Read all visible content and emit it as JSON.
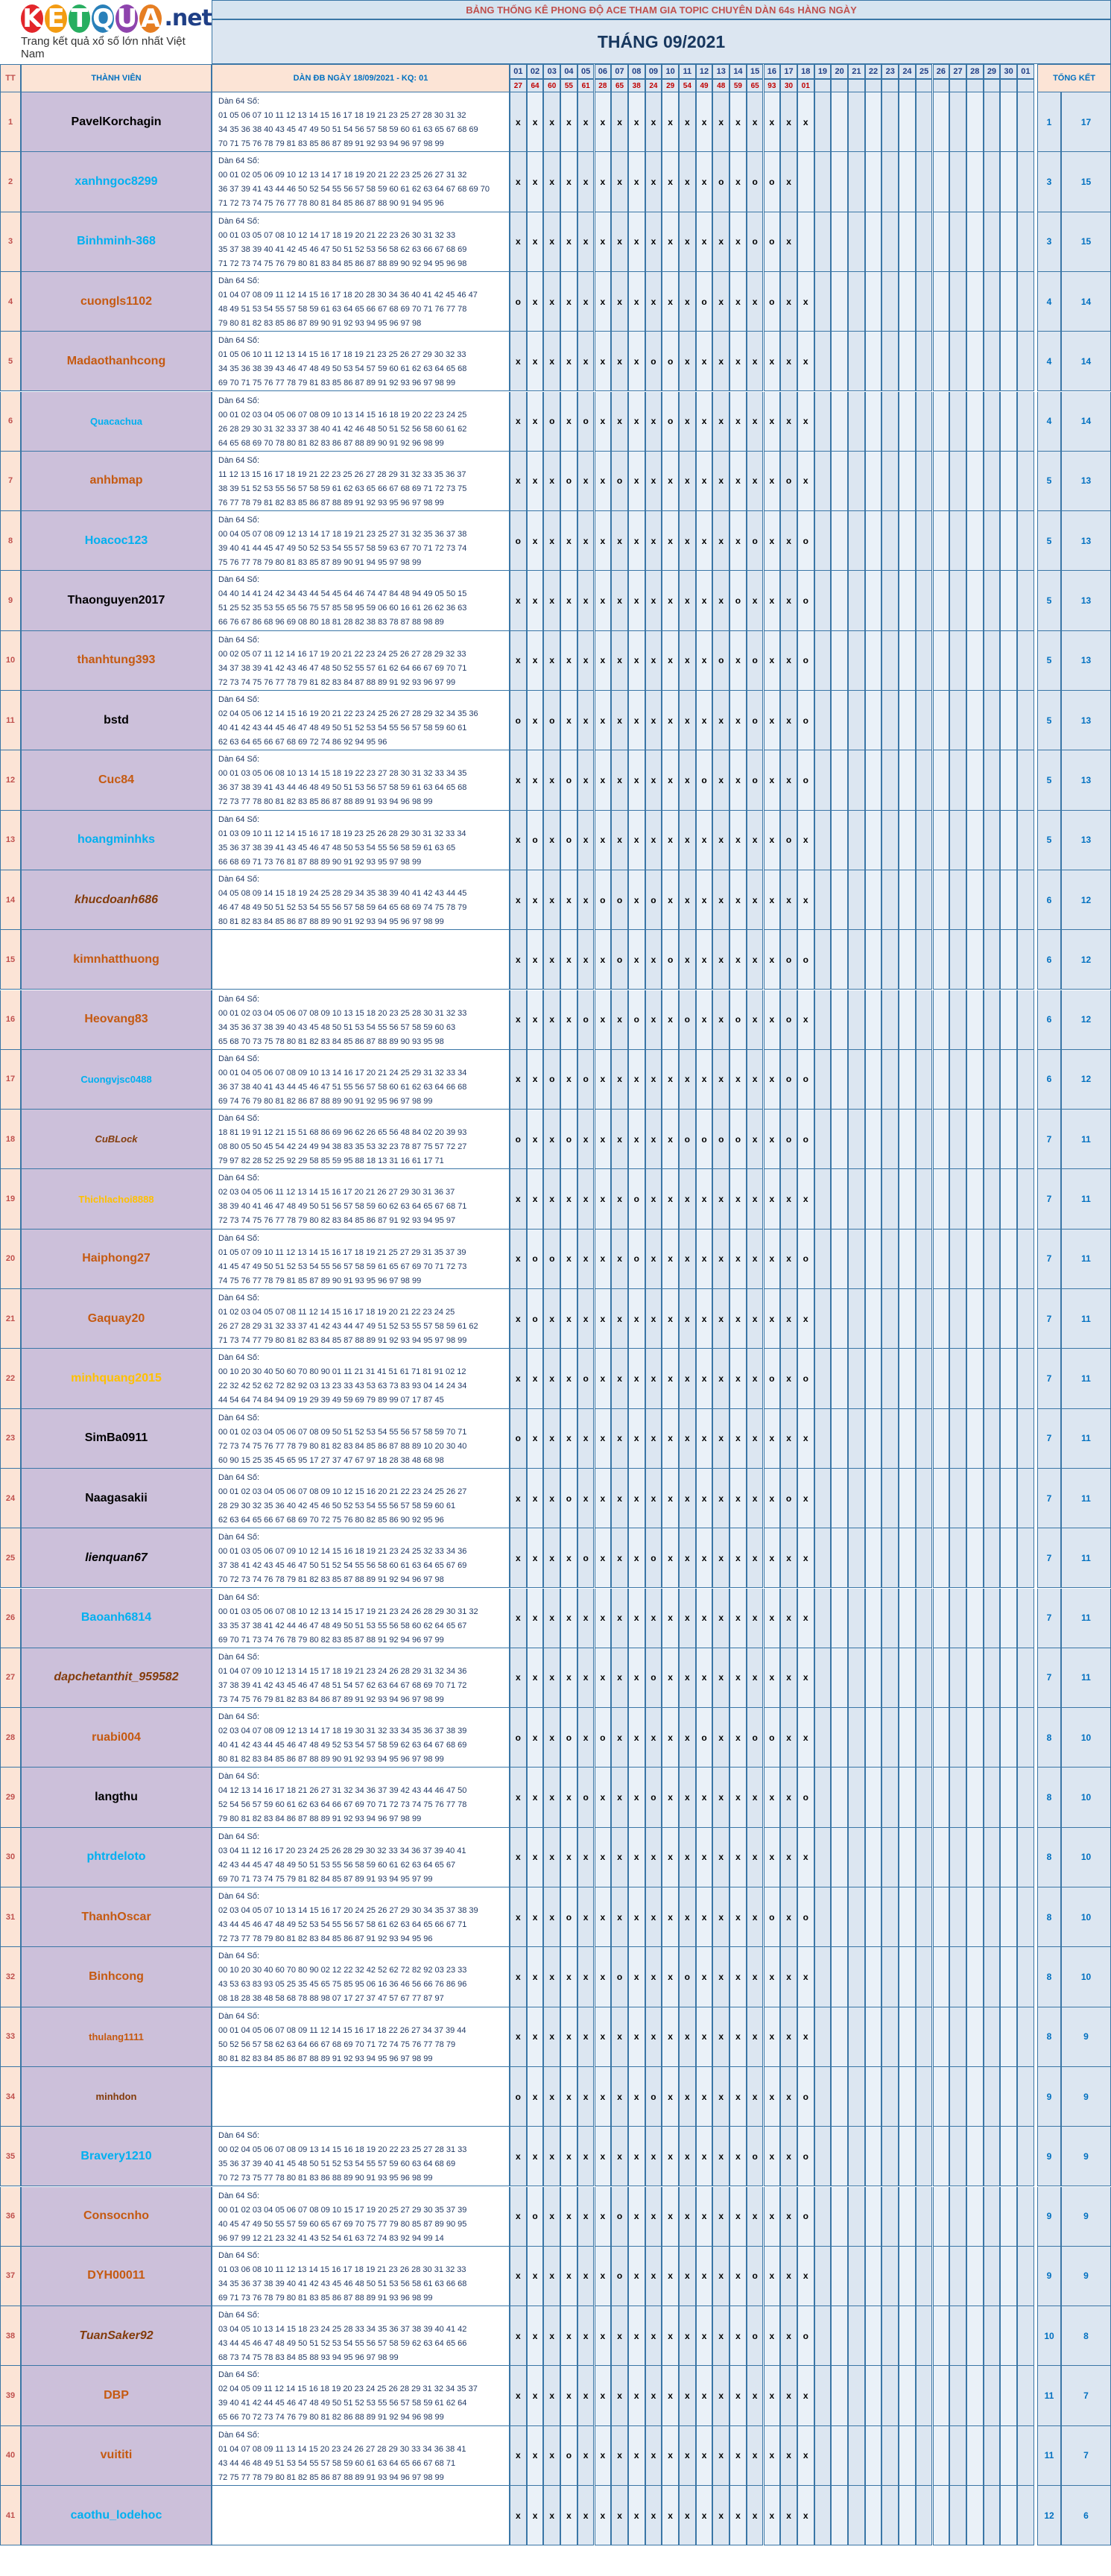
{
  "logo": {
    "letters": [
      "K",
      "E",
      "T",
      "Q",
      "U",
      "A"
    ],
    "letter_colors": [
      "#e3262b",
      "#f39c12",
      "#27ae60",
      "#2980b9",
      "#8e44ad",
      "#e67e22"
    ],
    "suffix": ".net",
    "tagline": "Trang kết quả xổ số lớn nhất Việt Nam"
  },
  "header": {
    "title": "BẢNG THỐNG KÊ PHONG ĐỘ ACE THAM GIA TOPIC CHUYÊN DÀN 64s HÀNG NGÀY",
    "month": "THÁNG 09/2021",
    "col_tt": "TT",
    "col_member": "THÀNH VIÊN",
    "col_dan": "DÀN ĐB NGÀY 18/09/2021 - KQ: 01",
    "col_total": "TỔNG KẾT",
    "days": [
      "01",
      "02",
      "03",
      "04",
      "05",
      "06",
      "07",
      "08",
      "09",
      "10",
      "11",
      "12",
      "13",
      "14",
      "15",
      "16",
      "17",
      "18",
      "19",
      "20",
      "21",
      "22",
      "23",
      "24",
      "25",
      "26",
      "27",
      "28",
      "29",
      "30",
      "01"
    ],
    "results": [
      "27",
      "64",
      "60",
      "55",
      "61",
      "28",
      "65",
      "38",
      "24",
      "29",
      "54",
      "49",
      "48",
      "59",
      "65",
      "93",
      "30",
      "01",
      "",
      "",
      "",
      "",
      "",
      "",
      "",
      "",
      "",
      "",
      "",
      "",
      ""
    ]
  },
  "members": [
    {
      "tt": "1",
      "name": "PavelKorchagin",
      "color": "#000000",
      "italic": false,
      "dan": [
        "Dàn 64 Số:",
        "01 05 06 07 10 11 12 13 14 15 16 17 18 19 21 23 25 27 28 30 31 32",
        "34 35 36 38 40 43 45 47 49 50 51 54 56 57 58 59 60 61 63 65 67 68 69",
        "70 71 75 76 78 79 81 83 85 86 87 89 91 92 93 94 96 97 98 99"
      ],
      "marks": "xxxxxxxxxxxxxxxxxx",
      "t1": "1",
      "t2": "17"
    },
    {
      "tt": "2",
      "name": "xanhngoc8299",
      "color": "#00b0f0",
      "italic": false,
      "dan": [
        "Dàn 64 Số:",
        "00 01 02 05 06 09 10 12 13 14 17 18 19 20 21 22 23 25 26 27 31 32",
        "36 37 39 41 43 44 46 50 52 54 55 56 57 58 59 60 61 62 63 64 67 68 69 70",
        "71 72 73 74 75 76 77 78 80 81 84 85 86 87 88 90 91 94 95 96"
      ],
      "marks": "xxxxxxxxxxxxoxoox",
      "t1": "3",
      "t2": "15"
    },
    {
      "tt": "3",
      "name": "Binhminh-368",
      "color": "#00b0f0",
      "italic": false,
      "dan": [
        "Dàn 64 Số:",
        "00 01 03 05 07 08 10 12 14 17 18 19 20 21 22 23 26 30 31 32 33",
        "35 37 38 39 40 41 42 45 46 47 50 51 52 53 56 58 62 63 66 67 68 69",
        "71 72 73 74 75 76 79 80 81 83 84 85 86 87 88 89 90 92 94 95 96 98"
      ],
      "marks": "xxxxxxxxxxxxxxoox",
      "t1": "3",
      "t2": "15"
    },
    {
      "tt": "4",
      "name": "cuongls1102",
      "color": "#c55a11",
      "italic": false,
      "dan": [
        "Dàn 64 Số:",
        "01 04 07 08 09 11 12 14 15 16 17 18 20 28 30 34 36 40 41 42 45 46 47",
        "48 49 51 53 54 55 57 58 59 61 63 64 65 66 67 68 69 70 71 76 77 78",
        "79 80 81 82 83 85 86 87 89 90 91 92 93 94 95 96 97 98"
      ],
      "marks": "oxxxxxxxxxxoxxxoxx",
      "t1": "4",
      "t2": "14"
    },
    {
      "tt": "5",
      "name": "Madaothanhcong",
      "color": "#c55a11",
      "italic": false,
      "dan": [
        "Dàn 64 Số:",
        "01 05 06 10 11 12 13 14 15 16 17 18 19 21 23 25 26 27 29 30 32 33",
        "34 35 36 38 39 43 46 47 48 49 50 53 54 57 59 60 61 62 63 64 65 68",
        "69 70 71 75 76 77 78 79 81 83 85 86 87 89 91 92 93 96 97 98 99"
      ],
      "marks": "xxxxxxxxooxxxxxxxx",
      "t1": "4",
      "t2": "14"
    },
    {
      "tt": "6",
      "name": "Quacachua",
      "color": "#00b0f0",
      "italic": false,
      "small": true,
      "dan": [
        "Dàn 64 Số:",
        "00 01 02 03 04 05 06 07 08 09 10 13 14 15 16 18 19 20 22 23 24 25",
        "26 28 29 30 31 32 33 37 38 40 41 42 46 48 50 51 52 56 58 60 61 62",
        "64 65 68 69 70 78 80 81 82 83 86 87 88 89 90 91 92 96 98 99"
      ],
      "marks": "xxoxoxxxxoxxxxxxxx",
      "t1": "4",
      "t2": "14"
    },
    {
      "tt": "7",
      "name": "anhbmap",
      "color": "#c55a11",
      "italic": false,
      "dan": [
        "Dàn 64 Số:",
        "11 12 13 15 16 17 18 19 21 22 23 25 26 27 28 29 31 32 33 35 36 37",
        "38 39 51 52 53 55 56 57 58 59 61 62 63 65 66 67 68 69 71 72 73 75",
        "76 77 78 79 81 82 83 85 86 87 88 89 91 92 93 95 96 97 98 99"
      ],
      "marks": "xxxoxxoxxxxxxxxxox",
      "t1": "5",
      "t2": "13"
    },
    {
      "tt": "8",
      "name": "Hoacoc123",
      "color": "#00b0f0",
      "italic": false,
      "dan": [
        "Dàn 64 Số:",
        "00 04 05 07 08 09 12 13 14 17 18 19 21 23 25 27 31 32 35 36 37 38",
        "39 40 41 44 45 47 49 50 52 53 54 55 57 58 59 63 67 70 71 72 73 74",
        "75 76 77 78 79 80 81 83 85 87 89 90 91 94 95 97 98 99"
      ],
      "marks": "oxxxxxxxxxxxxxoxxo",
      "t1": "5",
      "t2": "13"
    },
    {
      "tt": "9",
      "name": "Thaonguyen2017",
      "color": "#000000",
      "italic": false,
      "dan": [
        "Dàn 64 Số:",
        "04 40 14 41 24 42 34 43 44 54 45 64 46 74 47 84 48 94 49 05 50 15",
        "51 25 52 35 53 55 65 56 75 57 85 58 95 59 06 60 16 61 26 62 36 63",
        "66 76 67 86 68 96 69 08 80 18 81 28 82 38 83 78 87 88 98 89"
      ],
      "marks": "xxxxxxxxxxxxxoxxxo",
      "t1": "5",
      "t2": "13"
    },
    {
      "tt": "10",
      "name": "thanhtung393",
      "color": "#c55a11",
      "italic": false,
      "dan": [
        "Dàn 64 Số:",
        "00 02 05 07 11 12 14 16 17 19 20 21 22 23 24 25 26 27 28 29 32 33",
        "34 37 38 39 41 42 43 46 47 48 50 52 55 57 61 62 64 66 67 69 70 71",
        "72 73 74 75 76 77 78 79 81 82 83 84 87 88 89 91 92 93 96 97 99"
      ],
      "marks": "xxxxxxxxxxxxoxoxxo",
      "t1": "5",
      "t2": "13"
    },
    {
      "tt": "11",
      "name": "bstd",
      "color": "#000000",
      "italic": false,
      "dan": [
        "Dàn 64 Số:",
        "02 04 05 06 12 14 15 16 19 20 21 22 23 24 25 26 27 28 29 32 34 35 36",
        "40 41 42 43 44 45 46 47 48 49 50 51 52 53 54 55 56 57 58 59 60 61",
        "62 63 64 65 66 67 68 69 72 74 86 92 94 95 96"
      ],
      "marks": "oxoxxxxxxxxxxxoxxo",
      "t1": "5",
      "t2": "13"
    },
    {
      "tt": "12",
      "name": "Cuc84",
      "color": "#c55a11",
      "italic": false,
      "dan": [
        "Dàn 64 Số:",
        "00 01 03 05 06 08 10 13 14 15 18 19 22 23 27 28 30 31 32 33 34 35",
        "36 37 38 39 41 43 44 46 48 49 50 51 53 56 57 58 59 61 63 64 65 68",
        "72 73 77 78 80 81 82 83 85 86 87 88 89 91 93 94 96 98 99"
      ],
      "marks": "xxxoxxxxxxxoxxoxxo",
      "t1": "5",
      "t2": "13"
    },
    {
      "tt": "13",
      "name": "hoangminhks",
      "color": "#00b0f0",
      "italic": false,
      "dan": [
        "Dàn 64 Số:",
        "01 03 09 10 11 12 14 15 16 17 18 19 23 25 26 28 29 30 31 32 33 34",
        "35 36 37 38 39 41 43 45 46 47 48 50 53 54 55 56 58 59 61 63 65",
        "66 68 69 71 73 76 81 87 88 89 90 91 92 93 95 97 98 99"
      ],
      "marks": "xoxoxxxxxxxxxxxxox",
      "t1": "5",
      "t2": "13"
    },
    {
      "tt": "14",
      "name": "khucdoanh686",
      "color": "#833c0b",
      "italic": true,
      "dan": [
        "Dàn 64 Số:",
        "04 05 08 09 14 15 18 19 24 25 28 29 34 35 38 39 40 41 42 43 44 45",
        "46 47 48 49 50 51 52 53 54 55 56 57 58 59 64 65 68 69 74 75 78 79",
        "80 81 82 83 84 85 86 87 88 89 90 91 92 93 94 95 96 97 98 99"
      ],
      "marks": "xxxxxooxoxxxxxxxxx",
      "t1": "6",
      "t2": "12"
    },
    {
      "tt": "15",
      "name": "kimnhatthuong",
      "color": "#c55a11",
      "italic": false,
      "dan": [],
      "marks": "xxxxxxoxxoxxxxxxoo",
      "t1": "6",
      "t2": "12"
    },
    {
      "tt": "16",
      "name": "Heovang83",
      "color": "#c55a11",
      "italic": false,
      "dan": [
        "Dàn 64 Số:",
        "00 01 02 03 04 05 06 07 08 09 10 13 15 18 20 23 25 28 30 31 32 33",
        "34 35 36 37 38 39 40 43 45 48 50 51 53 54 55 56 57 58 59 60 63",
        "65 68 70 73 75 78 80 81 82 83 84 85 86 87 88 89 90 93 95 98"
      ],
      "marks": "xxxxoxxoxxoxxoxxox",
      "t1": "6",
      "t2": "12"
    },
    {
      "tt": "17",
      "name": "Cuongvjsc0488",
      "color": "#00b0f0",
      "italic": false,
      "small": true,
      "dan": [
        "Dàn 64 Số:",
        "00 01 04 05 06 07 08 09 10 13 14 16 17 20 21 24 25 29 31 32 33 34",
        "36 37 38 40 41 43 44 45 46 47 51 55 56 57 58 60 61 62 63 64 66 68",
        "69 74 76 79 80 81 82 86 87 88 89 90 91 92 95 96 97 98 99"
      ],
      "marks": "xxoxoxxxxxxxxxxxoo",
      "t1": "6",
      "t2": "12"
    },
    {
      "tt": "18",
      "name": "CuBLock",
      "color": "#833c0b",
      "italic": true,
      "small": true,
      "dan": [
        "Dàn 64 Số:",
        "18 81 19 91 12 21 15 51 68 86 69 96 62 26 65 56 48 84 02 20 39 93",
        "08 80 05 50 45 54 42 24 49 94 38 83 35 53 32 23 78 87 75 57 72 27",
        "79 97 82 28 52 25 92 29 58 85 59 95 88 18 13 31 16 61 17 71"
      ],
      "marks": "oxxoxxxxxxooooxxoo",
      "t1": "7",
      "t2": "11"
    },
    {
      "tt": "19",
      "name": "Thichlachoi8888",
      "color": "#ffc000",
      "italic": false,
      "small": true,
      "dan": [
        "Dàn 64 Số:",
        "02 03 04 05 06 11 12 13 14 15 16 17 20 21 26 27 29 30 31 36 37",
        "38 39 40 41 46 47 48 49 50 51 56 57 58 59 60 62 63 64 65 67 68 71",
        "72 73 74 75 76 77 78 79 80 82 83 84 85 86 87 91 92 93 94 95 97"
      ],
      "marks": "xxxxxxxoxxxxxxxxxx",
      "t1": "7",
      "t2": "11"
    },
    {
      "tt": "20",
      "name": "Haiphong27",
      "color": "#c55a11",
      "italic": false,
      "dan": [
        "Dàn 64 Số:",
        "01 05 07 09 10 11 12 13 14 15 16 17 18 19 21 25 27 29 31 35 37 39",
        "41 45 47 49 50 51 52 53 54 55 56 57 58 59 61 65 67 69 70 71 72 73",
        "74 75 76 77 78 79 81 85 87 89 90 91 93 95 96 97 98 99"
      ],
      "marks": "xooxxxxoxxxxxxxxxo",
      "t1": "7",
      "t2": "11"
    },
    {
      "tt": "21",
      "name": "Gaquay20",
      "color": "#c55a11",
      "italic": false,
      "dan": [
        "Dàn 64 Số:",
        "01 02 03 04 05 07 08 11 12 14 15 16 17 18 19 20 21 22 23 24 25",
        "26 27 28 29 31 32 33 37 41 42 43 44 47 49 51 52 53 55 57 58 59 61 62",
        "71 73 74 77 79 80 81 82 83 84 85 87 88 89 91 92 93 94 95 97 98 99"
      ],
      "marks": "xoxxxxxxxxxxxxxxxx",
      "t1": "7",
      "t2": "11"
    },
    {
      "tt": "22",
      "name": "minhquang2015",
      "color": "#ffc000",
      "italic": false,
      "dan": [
        "Dàn 64 Số:",
        "00 10 20 30 40 50 60 70 80 90 01 11 21 31 41 51 61 71 81 91 02 12",
        "22 32 42 52 62 72 82 92 03 13 23 33 43 53 63 73 83 93 04 14 24 34",
        "44 54 64 74 84 94 09 19 29 39 49 59 69 79 89 99 07 17 87 45"
      ],
      "marks": "xxxxoxxxxxxxxxxoxo",
      "t1": "7",
      "t2": "11"
    },
    {
      "tt": "23",
      "name": "SimBa0911",
      "color": "#000000",
      "italic": false,
      "dan": [
        "Dàn 64 Số:",
        "00 01 02 03 04 05 06 07 08 09 50 51 52 53 54 55 56 57 58 59 70 71",
        "72 73 74 75 76 77 78 79 80 81 82 83 84 85 86 87 88 89 10 20 30 40",
        "60 90 15 25 35 45 65 95 17 27 37 47 67 97 18 28 38 48 68 98"
      ],
      "marks": "oxxxxxxxxxxxxxxxxx",
      "t1": "7",
      "t2": "11"
    },
    {
      "tt": "24",
      "name": "Naagasakii",
      "color": "#000000",
      "italic": false,
      "dan": [
        "Dàn 64 Số:",
        "00 01 02 03 04 05 06 07 08 09 10 12 15 16 20 21 22 23 24 25 26 27",
        "28 29 30 32 35 36 40 42 45 46 50 52 53 54 55 56 57 58 59 60 61",
        "62 63 64 65 66 67 68 69 70 72 75 76 80 82 85 86 90 92 95 96"
      ],
      "marks": "xxxoxxxxxxxxxxxxox",
      "t1": "7",
      "t2": "11"
    },
    {
      "tt": "25",
      "name": "lienquan67",
      "color": "#000000",
      "italic": true,
      "dan": [
        "Dàn 64 Số:",
        "00 01 03 05 06 07 09 10 12 14 15 16 18 19 21 23 24 25 32 33 34 36",
        "37 38 41 42 43 45 46 47 50 51 52 54 55 56 58 60 61 63 64 65 67 69",
        "70 72 73 74 76 78 79 81 82 83 85 87 88 89 91 92 94 96 97 98"
      ],
      "marks": "xxxxoxxxoxxxxxxxxx",
      "t1": "7",
      "t2": "11"
    },
    {
      "tt": "26",
      "name": "Baoanh6814",
      "color": "#00b0f0",
      "italic": false,
      "dan": [
        "Dàn 64 Số:",
        "00 01 03 05 06 07 08 10 12 13 14 15 17 19 21 23 24 26 28 29 30 31 32",
        "33 35 37 38 41 42 44 46 47 48 49 50 51 53 55 56 58 60 62 64 65 67",
        "69 70 71 73 74 76 78 79 80 82 83 85 87 88 91 92 94 96 97 99"
      ],
      "marks": "xxxxxxxxxxxxxxxxxx",
      "t1": "7",
      "t2": "11"
    },
    {
      "tt": "27",
      "name": "dapchetanthit_959582",
      "color": "#833c0b",
      "italic": true,
      "dan": [
        "Dàn 64 Số:",
        "01 04 07 09 10 12 13 14 15 17 18 19 21 23 24 26 28 29 31 32 34 36",
        "37 38 39 41 42 43 45 46 47 48 51 54 57 62 63 64 67 68 69 70 71 72",
        "73 74 75 76 79 81 82 83 84 86 87 89 91 92 93 94 96 97 98 99"
      ],
      "marks": "xxxxxxxxoxxxxxxxxx",
      "t1": "7",
      "t2": "11"
    },
    {
      "tt": "28",
      "name": "ruabi004",
      "color": "#c55a11",
      "italic": false,
      "dan": [
        "Dàn 64 Số:",
        "02 03 04 07 08 09 12 13 14 17 18 19 30 31 32 33 34 35 36 37 38 39",
        "40 41 42 43 44 45 46 47 48 49 52 53 54 57 58 59 62 63 64 67 68 69",
        "80 81 82 83 84 85 86 87 88 89 90 91 92 93 94 95 96 97 98 99"
      ],
      "marks": "oxxoxoxxxxxoxxooxx",
      "t1": "8",
      "t2": "10"
    },
    {
      "tt": "29",
      "name": "langthu",
      "color": "#000000",
      "italic": false,
      "dan": [
        "Dàn 64 Số:",
        "04 12 13 14 16 17 18 21 26 27 31 32 34 36 37 39 42 43 44 46 47 50",
        "52 54 56 57 59 60 61 62 63 64 66 67 69 70 71 72 73 74 75 76 77 78",
        "79 80 81 82 83 84 86 87 88 89 91 92 93 94 96 97 98 99"
      ],
      "marks": "xxxxoxxxoxxxxxxxxo",
      "t1": "8",
      "t2": "10"
    },
    {
      "tt": "30",
      "name": "phtrdeloto",
      "color": "#00b0f0",
      "italic": false,
      "dan": [
        "Dàn 64 Số:",
        "03 04 11 12 16 17 20 23 24 25 26 28 29 30 32 33 34 36 37 39 40 41",
        "42 43 44 45 47 48 49 50 51 53 55 56 58 59 60 61 62 63 64 65 67",
        "69 70 71 73 74 75 79 81 82 84 85 87 89 91 93 94 95 97 99"
      ],
      "marks": "xxxxxxxxxxxxxxxxxx",
      "t1": "8",
      "t2": "10"
    },
    {
      "tt": "31",
      "name": "ThanhOscar",
      "color": "#c55a11",
      "italic": false,
      "dan": [
        "Dàn 64 Số:",
        "02 03 04 05 07 10 13 14 15 16 17 20 24 25 26 27 29 30 34 35 37 38 39",
        "43 44 45 46 47 48 49 52 53 54 55 56 57 58 61 62 63 64 65 66 67 71",
        "72 73 77 78 79 80 81 82 83 84 85 86 87 91 92 93 94 95 96"
      ],
      "marks": "xxxoxxxxxxxxxxxoxo",
      "t1": "8",
      "t2": "10"
    },
    {
      "tt": "32",
      "name": "Binhcong",
      "color": "#c55a11",
      "italic": false,
      "dan": [
        "Dàn 64 Số:",
        "00 10 20 30 40 60 70 80 90 02 12 22 32 42 52 62 72 82 92 03 23 33",
        "43 53 63 83 93 05 25 35 45 65 75 85 95 06 16 36 46 56 66 76 86 96",
        "08 18 28 38 48 58 68 78 88 98 07 17 27 37 47 57 67 77 87 97"
      ],
      "marks": "xxxxxxoxxxoxxxxxxx",
      "t1": "8",
      "t2": "10"
    },
    {
      "tt": "33",
      "name": "thulang1111",
      "color": "#c55a11",
      "italic": false,
      "small": true,
      "dan": [
        "Dàn 64 Số:",
        "00 01 04 05 06 07 08 09 11 12 14 15 16 17 18 22 26 27 34 37 39 44",
        "50 52 56 57 58 62 63 64 66 67 68 69 70 71 72 74 75 76 77 78 79",
        "80 81 82 83 84 85 86 87 88 89 91 92 93 94 95 96 97 98 99"
      ],
      "marks": "xxxxxxxxxxxxxxxxxx",
      "t1": "8",
      "t2": "9"
    },
    {
      "tt": "34",
      "name": "minhdon",
      "color": "#833c0b",
      "italic": false,
      "small": true,
      "dan": [],
      "marks": "oxxxxxxxoxxxxxxxxo",
      "t1": "9",
      "t2": "9"
    },
    {
      "tt": "35",
      "name": "Bravery1210",
      "color": "#00b0f0",
      "italic": false,
      "dan": [
        "Dàn 64 Số:",
        "00 02 04 05 06 07 08 09 13 14 15 16 18 19 20 22 23 25 27 28 31 33",
        "35 36 37 39 40 41 45 48 50 51 52 53 54 55 57 59 60 63 64 68 69",
        "70 72 73 75 77 78 80 81 83 86 88 89 90 91 93 95 96 98 99"
      ],
      "marks": "xxxxxxxxxxxxxxoxxo",
      "t1": "9",
      "t2": "9"
    },
    {
      "tt": "36",
      "name": "Consocnho",
      "color": "#c55a11",
      "italic": false,
      "dan": [
        "Dàn 64 Số:",
        "00 01 02 03 04 05 06 07 08 09 10 15 17 19 20 25 27 29 30 35 37 39",
        "40 45 47 49 50 55 57 59 60 65 67 69 70 75 77 79 80 85 87 89 90 95",
        "96 97 99 12 21 23 32 41 43 52 54 61 63 72 74 83 92 94 99 14"
      ],
      "marks": "xoxxxxoxxxxxxxxxxo",
      "t1": "9",
      "t2": "9"
    },
    {
      "tt": "37",
      "name": "DYH00011",
      "color": "#c55a11",
      "italic": false,
      "dan": [
        "Dàn 64 Số:",
        "01 03 06 08 10 11 12 13 14 15 16 17 18 19 21 23 26 28 30 31 32 33",
        "34 35 36 37 38 39 40 41 42 43 45 46 48 50 51 53 56 58 61 63 66 68",
        "69 71 73 76 78 79 80 81 83 85 86 87 88 89 91 93 96 98 99"
      ],
      "marks": "xxxxxxoxxxxxxxoxxx",
      "t1": "9",
      "t2": "9"
    },
    {
      "tt": "38",
      "name": "TuanSaker92",
      "color": "#833c0b",
      "italic": true,
      "dan": [
        "Dàn 64 Số:",
        "03 04 05 10 13 14 15 18 23 24 25 28 33 34 35 36 37 38 39 40 41 42",
        "43 44 45 46 47 48 49 50 51 52 53 54 55 56 57 58 59 62 63 64 65 66",
        "68 73 74 75 78 83 84 85 88 93 94 95 96 97 98 99"
      ],
      "marks": "xxxxxxxxxxxxxxoxxo",
      "t1": "10",
      "t2": "8"
    },
    {
      "tt": "39",
      "name": "DBP",
      "color": "#c55a11",
      "italic": false,
      "dan": [
        "Dàn 64 Số:",
        "02 04 05 09 11 12 14 15 16 18 19 20 23 24 25 26 28 29 31 32 34 35 37",
        "39 40 41 42 44 45 46 47 48 49 50 51 52 53 55 56 57 58 59 61 62 64",
        "65 66 70 72 73 74 76 79 80 81 82 86 88 89 91 92 94 96 98 99"
      ],
      "marks": "xxxxxxxxxxxxxxxxxx",
      "t1": "11",
      "t2": "7"
    },
    {
      "tt": "40",
      "name": "vuititi",
      "color": "#c55a11",
      "italic": false,
      "dan": [
        "Dàn 64 Số:",
        "01 04 07 08 09 11 13 14 15 20 23 24 26 27 28 29 30 33 34 36 38 41",
        "43 44 46 48 49 51 53 54 55 57 58 59 60 61 63 64 65 66 67 68 71",
        "72 75 77 78 79 80 81 82 85 86 87 88 89 91 93 94 96 97 98 99"
      ],
      "marks": "xxxoxxxxxxxxxxxxxx",
      "t1": "11",
      "t2": "7"
    },
    {
      "tt": "41",
      "name": "caothu_lodehoc",
      "color": "#00b0f0",
      "italic": false,
      "dan": [],
      "marks": "xxxxxxxxxxxxxxxxxx",
      "t1": "12",
      "t2": "6"
    }
  ]
}
